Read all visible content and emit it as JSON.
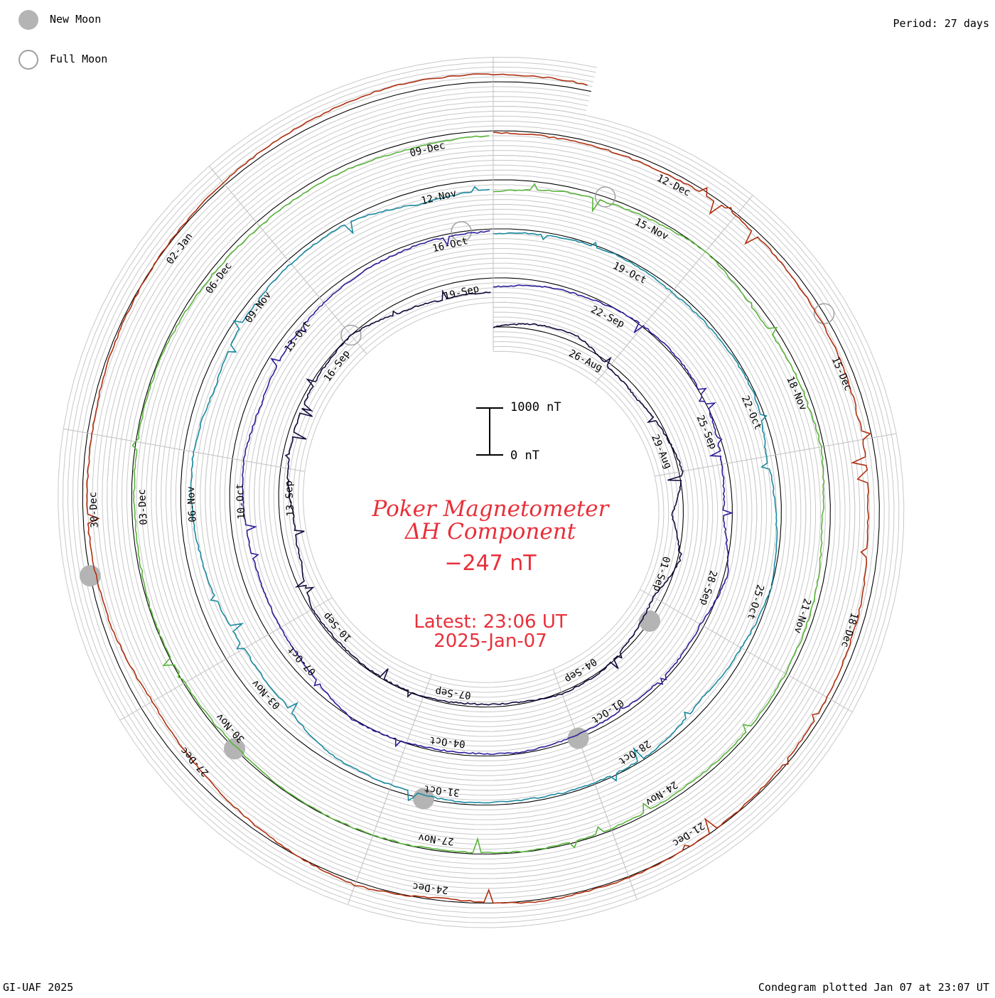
{
  "legend": {
    "new_moon_label": "New Moon",
    "full_moon_label": "Full Moon",
    "new_moon_color": "#b4b4b4",
    "full_moon_color": "#a0a0a0"
  },
  "period_label": "Period: 27 days",
  "footer": {
    "left": "GI-UAF 2025",
    "right": "Condegram plotted Jan 07 at 23:07 UT"
  },
  "center": {
    "title_line1": "Poker Magnetometer",
    "title_line2": "ΔH Component",
    "current_value": "−247 nT",
    "latest_line1": "Latest: 23:06 UT",
    "latest_line2": "2025-Jan-07",
    "text_color": "#e8303a"
  },
  "chart_data": {
    "type": "line",
    "title": "Poker Magnetometer ΔH Component",
    "units": "nT",
    "period_days": 27,
    "start_date": "2024-08-24",
    "end_date": "2025-01-07",
    "scale_bar": {
      "top_label": "1000 nT",
      "bottom_label": "0 nT",
      "top_value": 1000,
      "bottom_value": 0
    },
    "grid": true,
    "rotation_date_labels": [
      {
        "text": "26-Aug",
        "day": 2
      },
      {
        "text": "29-Aug",
        "day": 5
      },
      {
        "text": "01-Sep",
        "day": 8
      },
      {
        "text": "04-Sep",
        "day": 11
      },
      {
        "text": "07-Sep",
        "day": 14
      },
      {
        "text": "10-Sep",
        "day": 17
      },
      {
        "text": "13-Sep",
        "day": 20
      },
      {
        "text": "16-Sep",
        "day": 23
      },
      {
        "text": "19-Sep",
        "day": 26
      },
      {
        "text": "22-Sep",
        "day": 29
      },
      {
        "text": "25-Sep",
        "day": 32
      },
      {
        "text": "28-Sep",
        "day": 35
      },
      {
        "text": "01-Oct",
        "day": 38
      },
      {
        "text": "04-Oct",
        "day": 41
      },
      {
        "text": "07-Oct",
        "day": 44
      },
      {
        "text": "10-Oct",
        "day": 47
      },
      {
        "text": "13-Oct",
        "day": 50
      },
      {
        "text": "16-Oct",
        "day": 53
      },
      {
        "text": "19-Oct",
        "day": 56
      },
      {
        "text": "22-Oct",
        "day": 59
      },
      {
        "text": "25-Oct",
        "day": 62
      },
      {
        "text": "28-Oct",
        "day": 65
      },
      {
        "text": "31-Oct",
        "day": 68
      },
      {
        "text": "03-Nov",
        "day": 71
      },
      {
        "text": "06-Nov",
        "day": 74
      },
      {
        "text": "09-Nov",
        "day": 77
      },
      {
        "text": "12-Nov",
        "day": 80
      },
      {
        "text": "15-Nov",
        "day": 83
      },
      {
        "text": "18-Nov",
        "day": 86
      },
      {
        "text": "21-Nov",
        "day": 89
      },
      {
        "text": "24-Nov",
        "day": 92
      },
      {
        "text": "27-Nov",
        "day": 95
      },
      {
        "text": "30-Nov",
        "day": 98
      },
      {
        "text": "03-Dec",
        "day": 101
      },
      {
        "text": "06-Dec",
        "day": 104
      },
      {
        "text": "09-Dec",
        "day": 107
      },
      {
        "text": "12-Dec",
        "day": 110
      },
      {
        "text": "15-Dec",
        "day": 113
      },
      {
        "text": "18-Dec",
        "day": 116
      },
      {
        "text": "21-Dec",
        "day": 119
      },
      {
        "text": "24-Dec",
        "day": 122
      },
      {
        "text": "27-Dec",
        "day": 125
      },
      {
        "text": "30-Dec",
        "day": 128
      },
      {
        "text": "02-Jan",
        "day": 131
      }
    ],
    "moon_phases": [
      {
        "phase": "new",
        "day": 9.5
      },
      {
        "phase": "full",
        "day": 24.0
      },
      {
        "phase": "new",
        "day": 39.0
      },
      {
        "phase": "full",
        "day": 53.5
      },
      {
        "phase": "new",
        "day": 68.5
      },
      {
        "phase": "full",
        "day": 82.5
      },
      {
        "phase": "new",
        "day": 98.0
      },
      {
        "phase": "full",
        "day": 112.5
      },
      {
        "phase": "new",
        "day": 127.5
      }
    ],
    "series": [
      {
        "date": "2024-08-24",
        "color": "#140a3c",
        "keypoints": [
          [
            0,
            0
          ],
          [
            1,
            120
          ],
          [
            2,
            150
          ],
          [
            3,
            -80
          ],
          [
            4,
            -150
          ],
          [
            5,
            -40
          ],
          [
            6,
            80
          ],
          [
            7,
            -250
          ],
          [
            8,
            60
          ],
          [
            9,
            -200
          ],
          [
            10,
            -100
          ],
          [
            11,
            20
          ],
          [
            12,
            40
          ],
          [
            13,
            -50
          ],
          [
            14,
            -60
          ],
          [
            15,
            -20
          ],
          [
            16,
            -20
          ],
          [
            17,
            -40
          ],
          [
            18,
            -40
          ],
          [
            19,
            -250
          ],
          [
            20,
            -300
          ],
          [
            21,
            -150
          ],
          [
            22,
            -100
          ],
          [
            23,
            -50
          ],
          [
            24,
            0
          ],
          [
            25,
            -200
          ],
          [
            26,
            -300
          ],
          [
            27,
            -300
          ]
        ]
      },
      {
        "date": "2024-09-20",
        "color": "#2c1e9a",
        "keypoints": [
          [
            0,
            -200
          ],
          [
            1,
            -100
          ],
          [
            2,
            -50
          ],
          [
            3,
            30
          ],
          [
            4,
            40
          ],
          [
            5,
            -10
          ],
          [
            6,
            -120
          ],
          [
            7,
            -200
          ],
          [
            8,
            80
          ],
          [
            9,
            -80
          ],
          [
            10,
            -60
          ],
          [
            11,
            -100
          ],
          [
            12,
            -80
          ],
          [
            13,
            -30
          ],
          [
            14,
            -60
          ],
          [
            15,
            -20
          ],
          [
            16,
            20
          ],
          [
            17,
            -200
          ],
          [
            18,
            -300
          ],
          [
            19,
            -350
          ],
          [
            20,
            -300
          ],
          [
            21,
            -250
          ],
          [
            22,
            -300
          ],
          [
            23,
            -200
          ],
          [
            24,
            -150
          ],
          [
            25,
            -100
          ],
          [
            26,
            -60
          ],
          [
            27,
            -50
          ]
        ]
      },
      {
        "date": "2024-10-17",
        "color": "#1a8aa0",
        "keypoints": [
          [
            0,
            -100
          ],
          [
            1,
            -50
          ],
          [
            2,
            -20
          ],
          [
            3,
            -80
          ],
          [
            4,
            -60
          ],
          [
            5,
            -30
          ],
          [
            6,
            -200
          ],
          [
            7,
            -100
          ],
          [
            8,
            0
          ],
          [
            9,
            -120
          ],
          [
            10,
            -200
          ],
          [
            11,
            -40
          ],
          [
            12,
            -30
          ],
          [
            13,
            -60
          ],
          [
            14,
            -50
          ],
          [
            15,
            -100
          ],
          [
            16,
            -150
          ],
          [
            17,
            -400
          ],
          [
            18,
            -450
          ],
          [
            19,
            -350
          ],
          [
            20,
            -250
          ],
          [
            21,
            -200
          ],
          [
            22,
            -300
          ],
          [
            23,
            -150
          ],
          [
            24,
            -100
          ],
          [
            25,
            -80
          ],
          [
            26,
            -300
          ],
          [
            27,
            -200
          ]
        ]
      },
      {
        "date": "2024-11-13",
        "color": "#5ab43c",
        "keypoints": [
          [
            0,
            -250
          ],
          [
            1,
            -120
          ],
          [
            2,
            -80
          ],
          [
            3,
            0
          ],
          [
            4,
            -150
          ],
          [
            5,
            -100
          ],
          [
            6,
            -60
          ],
          [
            7,
            -180
          ],
          [
            8,
            -100
          ],
          [
            9,
            -80
          ],
          [
            10,
            -60
          ],
          [
            11,
            -80
          ],
          [
            12,
            -40
          ],
          [
            13,
            -20
          ],
          [
            14,
            -30
          ],
          [
            15,
            -10
          ],
          [
            16,
            -20
          ],
          [
            17,
            -50
          ],
          [
            18,
            -30
          ],
          [
            19,
            -20
          ],
          [
            20,
            -60
          ],
          [
            21,
            -40
          ],
          [
            22,
            -30
          ],
          [
            23,
            -80
          ],
          [
            24,
            -120
          ],
          [
            25,
            -100
          ],
          [
            26,
            -150
          ],
          [
            27,
            -100
          ]
        ]
      },
      {
        "date": "2024-12-10",
        "color": "#b03010",
        "keypoints": [
          [
            0,
            -40
          ],
          [
            1,
            -80
          ],
          [
            2,
            -100
          ],
          [
            3,
            -50
          ],
          [
            4,
            -120
          ],
          [
            5,
            -150
          ],
          [
            6,
            -200
          ],
          [
            7,
            -250
          ],
          [
            8,
            -150
          ],
          [
            9,
            -100
          ],
          [
            10,
            -50
          ],
          [
            11,
            -10
          ],
          [
            12,
            20
          ],
          [
            13,
            40
          ],
          [
            14,
            -60
          ],
          [
            15,
            80
          ],
          [
            16,
            -50
          ],
          [
            17,
            -200
          ],
          [
            18,
            -280
          ],
          [
            19,
            -150
          ],
          [
            20,
            -100
          ],
          [
            21,
            -100
          ],
          [
            22,
            -50
          ],
          [
            23,
            0
          ],
          [
            24,
            60
          ],
          [
            25,
            120
          ],
          [
            26,
            200
          ],
          [
            27,
            160
          ]
        ]
      }
    ]
  }
}
